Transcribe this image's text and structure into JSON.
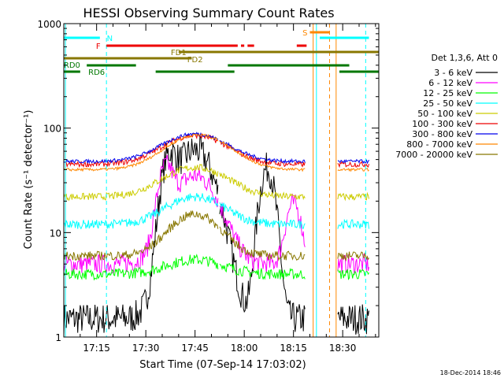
{
  "chart_data": {
    "type": "line",
    "title": "HESSI Observing Summary Count Rates",
    "xlabel": "Start Time (07-Sep-14 17:03:02)",
    "ylabel": "Count Rate (s⁻¹ detector⁻¹)",
    "x_start": "17:03:02",
    "xlim": [
      "17:05",
      "18:41"
    ],
    "x_ticks": [
      "17:15",
      "17:30",
      "17:45",
      "18:00",
      "18:15",
      "18:30"
    ],
    "y_scale": "log",
    "ylim": [
      1,
      1000
    ],
    "y_ticks": [
      "1",
      "10",
      "100",
      "1000"
    ],
    "legend": {
      "title": "Det 1,3,6, Att 0",
      "position": "right"
    },
    "series": [
      {
        "name": "3 - 6 keV",
        "color": "#000000"
      },
      {
        "name": "6 - 12 keV",
        "color": "#ff00ff"
      },
      {
        "name": "12 - 25 keV",
        "color": "#00ff00"
      },
      {
        "name": "25 - 50 keV",
        "color": "#00ffff"
      },
      {
        "name": "50 - 100 keV",
        "color": "#cccc00"
      },
      {
        "name": "100 - 300 keV",
        "color": "#ee0000"
      },
      {
        "name": "300 - 800 keV",
        "color": "#0000ee"
      },
      {
        "name": "800 - 7000 keV",
        "color": "#ff8800"
      },
      {
        "name": "7000 - 20000 keV",
        "color": "#887700"
      }
    ],
    "flag_labels": [
      "N",
      "F",
      "FD1",
      "FD2",
      "RD0",
      "RD6",
      "S"
    ],
    "footer_date": "18-Dec-2014 18:46"
  }
}
